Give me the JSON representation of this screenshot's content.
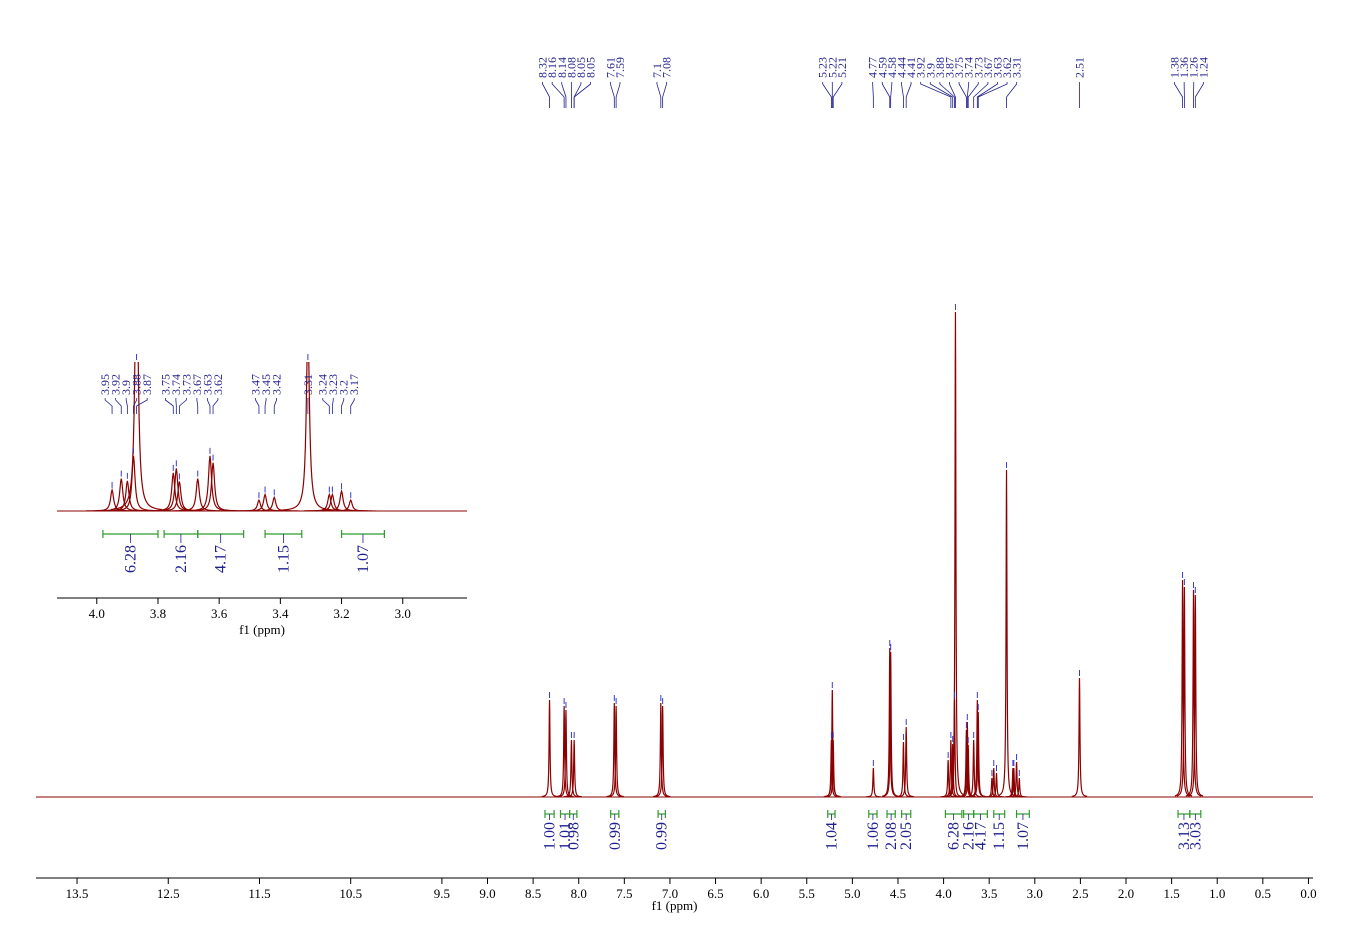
{
  "chart_data": [
    {
      "type": "nmr",
      "x_label": "f1 (ppm)",
      "color": "#8b0000",
      "label_color": "#1f1f8f",
      "integral_color": "#2e9b2e",
      "xlim": [
        13.95,
        -0.05
      ],
      "xticks": [
        13.5,
        12.5,
        11.5,
        10.5,
        9.5,
        {
          "value": 9,
          "label": "9.0"
        },
        8.5,
        {
          "value": 8,
          "label": "8.0"
        },
        7.5,
        {
          "value": 7,
          "label": "7.0"
        },
        6.5,
        {
          "value": 6,
          "label": "6.0"
        },
        5.5,
        {
          "value": 5,
          "label": "5.0"
        },
        4.5,
        {
          "value": 4,
          "label": "4.0"
        },
        3.5,
        {
          "value": 3,
          "label": "3.0"
        },
        2.5,
        {
          "value": 2,
          "label": "2.0"
        },
        1.5,
        {
          "value": 1,
          "label": "1.0"
        },
        0.5,
        {
          "value": 0,
          "label": "0.0"
        }
      ],
      "ylim": [
        0,
        500
      ],
      "peaks": {
        "x": [
          8.32,
          8.16,
          8.14,
          8.08,
          8.05,
          7.61,
          7.59,
          7.1,
          7.08,
          5.23,
          5.22,
          5.21,
          4.77,
          4.59,
          4.58,
          4.44,
          4.41,
          3.95,
          3.92,
          3.9,
          3.88,
          3.87,
          3.75,
          3.74,
          3.73,
          3.67,
          3.63,
          3.62,
          3.47,
          3.45,
          3.42,
          3.31,
          3.24,
          3.23,
          3.2,
          3.17,
          2.51,
          1.38,
          1.36,
          1.26,
          1.24
        ],
        "values": [
          97,
          91,
          87,
          57,
          57,
          94,
          91,
          94,
          91,
          57,
          107,
          57,
          29,
          149,
          145,
          55,
          70,
          37,
          57,
          53,
          97,
          485,
          67,
          75,
          52,
          57,
          97,
          85,
          19,
          29,
          24,
          327,
          29,
          29,
          35,
          19,
          119,
          217,
          210,
          207,
          202
        ]
      },
      "peak_labels": [
        8.32,
        8.16,
        8.14,
        8.08,
        8.05,
        8.05,
        7.61,
        7.59,
        7.1,
        7.08,
        5.23,
        5.22,
        5.21,
        4.77,
        4.59,
        4.58,
        4.44,
        4.41,
        3.92,
        3.9,
        3.88,
        3.87,
        3.75,
        3.74,
        3.73,
        3.67,
        3.63,
        3.62,
        3.31,
        2.51,
        1.38,
        1.36,
        1.26,
        1.24
      ],
      "integrals": {
        "ranges": [
          [
            8.37,
            8.27
          ],
          [
            8.2,
            8.1
          ],
          [
            8.1,
            8.02
          ],
          [
            7.65,
            7.56
          ],
          [
            7.13,
            7.05
          ],
          [
            5.27,
            5.19
          ],
          [
            4.82,
            4.73
          ],
          [
            4.62,
            4.53
          ],
          [
            4.46,
            4.36
          ],
          [
            3.98,
            3.8
          ],
          [
            3.78,
            3.67
          ],
          [
            3.67,
            3.52
          ],
          [
            3.45,
            3.33
          ],
          [
            3.2,
            3.06
          ],
          [
            1.43,
            1.3
          ],
          [
            1.3,
            1.18
          ]
        ],
        "values": [
          1.0,
          1.01,
          0.98,
          0.99,
          0.99,
          1.04,
          1.06,
          2.08,
          2.05,
          6.28,
          2.16,
          4.17,
          1.15,
          1.07,
          3.13,
          3.03
        ],
        "value_labels": [
          "1.00",
          "1.01",
          "0.98",
          "0.99",
          "0.99",
          "1.04",
          "1.06",
          "2.08",
          "2.05",
          "6.28",
          "2.16",
          "4.17",
          "1.15",
          "1.07",
          "3.13",
          "3.03"
        ]
      }
    },
    {
      "type": "nmr",
      "x_label": "f1 (ppm)",
      "color": "#8b0000",
      "label_color": "#1f1f8f",
      "integral_color": "#2e9b2e",
      "xlim": [
        4.13,
        2.79
      ],
      "xticks": [
        {
          "value": 4,
          "label": "4.0"
        },
        3.8,
        3.6,
        3.4,
        3.2,
        {
          "value": 3,
          "label": "3.0"
        }
      ],
      "ylim": [
        0,
        262
      ],
      "peaks": {
        "x": [
          3.95,
          3.92,
          3.9,
          3.88,
          3.87,
          3.75,
          3.74,
          3.73,
          3.67,
          3.63,
          3.62,
          3.47,
          3.45,
          3.42,
          3.31,
          3.24,
          3.23,
          3.2,
          3.17
        ],
        "values": [
          37,
          57,
          53,
          97,
          485,
          67,
          75,
          52,
          57,
          97,
          85,
          19,
          29,
          24,
          327,
          29,
          29,
          35,
          19
        ]
      },
      "peak_labels": [
        3.95,
        3.92,
        3.9,
        3.88,
        3.87,
        3.75,
        3.74,
        3.73,
        3.67,
        3.63,
        3.62,
        3.47,
        3.45,
        3.42,
        3.31,
        3.24,
        3.23,
        3.2,
        3.17
      ],
      "integrals": {
        "ranges": [
          [
            3.98,
            3.8
          ],
          [
            3.78,
            3.67
          ],
          [
            3.67,
            3.52
          ],
          [
            3.45,
            3.33
          ],
          [
            3.2,
            3.06
          ]
        ],
        "values": [
          6.28,
          2.16,
          4.17,
          1.15,
          1.07
        ],
        "value_labels": [
          "6.28",
          "2.16",
          "4.17",
          "1.15",
          "1.07"
        ]
      }
    }
  ]
}
